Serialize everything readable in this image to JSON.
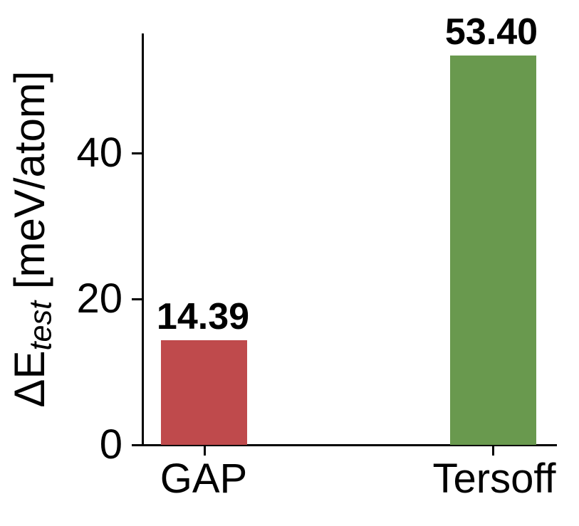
{
  "chart_data": {
    "type": "bar",
    "title": "",
    "categories": [
      "GAP",
      "Tersoff"
    ],
    "values": [
      14.39,
      53.4
    ],
    "value_labels": [
      "14.39",
      "53.40"
    ],
    "bar_colors": [
      "#bf4a4c",
      "#69994e"
    ],
    "xlabel": "",
    "ylabel": "ΔE_test [meV/atom]",
    "ylabel_rich": {
      "prefix": "ΔE",
      "subscript": "test",
      "unit": " [meV/atom]"
    },
    "yticks": [
      0,
      20,
      40
    ],
    "ytick_labels": [
      "0",
      "20",
      "40"
    ],
    "ylim": [
      0,
      56.5
    ],
    "grid": false,
    "legend": "none",
    "axis_color": "#000000",
    "text_color": "#000000",
    "background_color": "#ffffff"
  }
}
